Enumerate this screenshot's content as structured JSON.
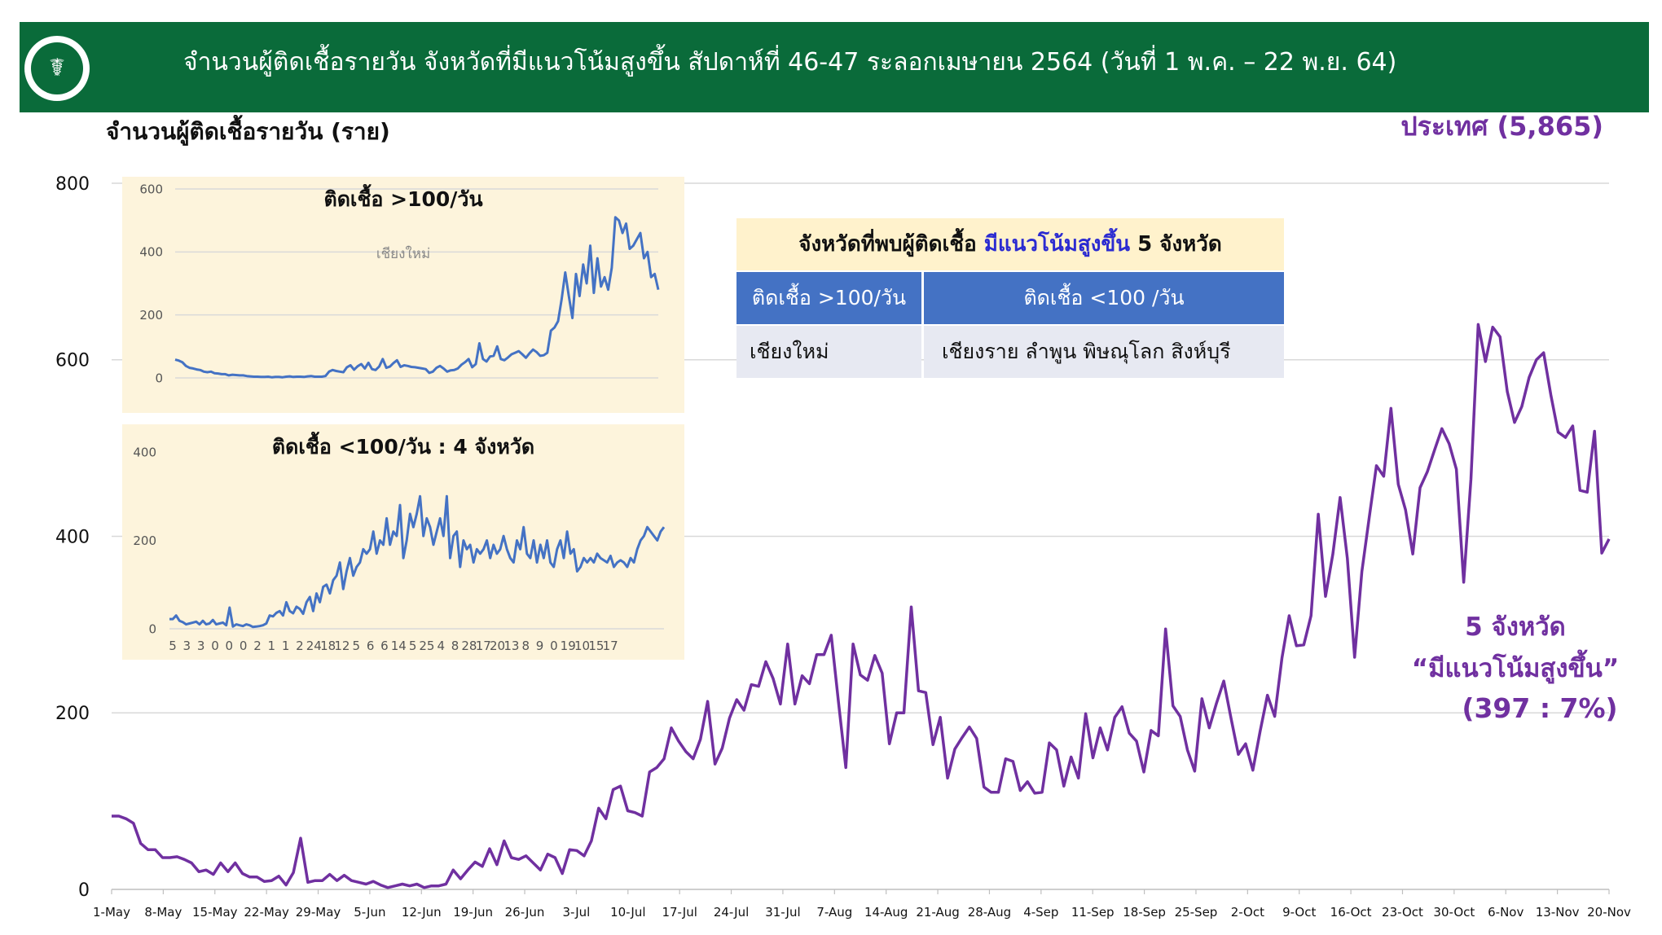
{
  "header": {
    "title": "จำนวนผู้ติดเชื้อรายวัน จังหวัดที่มีแนวโน้มสูงขึ้น สัปดาห์ที่ 46-47 ระลอกเมษายน 2564 (วันที่ 1 พ.ค. – 22 พ.ย. 64)",
    "logo_icon": "ministry-of-public-health-seal-icon"
  },
  "colors": {
    "header_bg": "#0a6b3a",
    "main_line": "#7030a0",
    "inset_line": "#4472c4",
    "inset_bg": "#fdf4dc",
    "table_head": "#4472c4",
    "table_title_bg": "#fff2cc",
    "highlight_text": "#2b2bd1"
  },
  "y_axis_title": "จำนวนผู้ติดเชื้อรายวัน (ราย)",
  "country_total": "ประเทศ (5,865)",
  "callout": {
    "title_prefix": "จังหวัดที่พบผู้ติดเชื้อ",
    "title_highlight": "มีแนวโน้มสูงขึ้น",
    "title_suffix": "5 จังหวัด",
    "col1_header": "ติดเชื้อ >100/วัน",
    "col2_header": "ติดเชื้อ <100 /วัน",
    "col1_value": "เชียงใหม่",
    "col2_value": "เชียงราย ลำพูน พิษณุโลก สิงห์บุรี"
  },
  "annotation": {
    "line1": "5 จังหวัด",
    "line2": "“มีแนวโน้มสูงขึ้น”",
    "line3": "(397 : 7%)"
  },
  "chart_data": [
    {
      "type": "line",
      "title": "",
      "ylabel": "จำนวนผู้ติดเชื้อรายวัน (ราย)",
      "ylim": [
        0,
        800
      ],
      "yticks": [
        0,
        200,
        400,
        600,
        800
      ],
      "grid": true,
      "x_tick_labels": [
        "1-May",
        "8-May",
        "15-May",
        "22-May",
        "29-May",
        "5-Jun",
        "12-Jun",
        "19-Jun",
        "26-Jun",
        "3-Jul",
        "10-Jul",
        "17-Jul",
        "24-Jul",
        "31-Jul",
        "7-Aug",
        "14-Aug",
        "21-Aug",
        "28-Aug",
        "4-Sep",
        "11-Sep",
        "18-Sep",
        "25-Sep",
        "2-Oct",
        "9-Oct",
        "16-Oct",
        "23-Oct",
        "30-Oct",
        "6-Nov",
        "13-Nov",
        "20-Nov"
      ],
      "series": [
        {
          "name": "5 จังหวัด “มีแนวโน้มสูงขึ้น”",
          "color": "#7030a0",
          "values": [
            83,
            83,
            80,
            75,
            52,
            45,
            45,
            36,
            36,
            37,
            34,
            30,
            20,
            22,
            17,
            30,
            20,
            30,
            18,
            14,
            14,
            9,
            10,
            15,
            5,
            19,
            58,
            8,
            10,
            10,
            17,
            10,
            16,
            10,
            8,
            6,
            9,
            5,
            2,
            4,
            6,
            4,
            6,
            2,
            4,
            4,
            6,
            22,
            12,
            22,
            31,
            26,
            46,
            28,
            55,
            36,
            34,
            38,
            30,
            22,
            40,
            36,
            18,
            45,
            44,
            38,
            55,
            92,
            80,
            113,
            117,
            89,
            87,
            83,
            133,
            138,
            148,
            183,
            168,
            156,
            148,
            170,
            213,
            142,
            160,
            194,
            215,
            203,
            232,
            230,
            258,
            239,
            210,
            278,
            210,
            242,
            233,
            266,
            266,
            288,
            212,
            138,
            278,
            243,
            237,
            265,
            245,
            165,
            200,
            200,
            320,
            225,
            223,
            164,
            195,
            126,
            159,
            172,
            184,
            171,
            116,
            110,
            110,
            148,
            145,
            112,
            122,
            109,
            110,
            166,
            158,
            117,
            150,
            126,
            199,
            149,
            183,
            158,
            195,
            207,
            177,
            168,
            133,
            180,
            174,
            295,
            208,
            196,
            158,
            134,
            216,
            183,
            211,
            236,
            194,
            153,
            165,
            135,
            179,
            220,
            196,
            262,
            310,
            276,
            277,
            310,
            425,
            332,
            380,
            444,
            375,
            263,
            360,
            421,
            480,
            468,
            545,
            459,
            430,
            380,
            455,
            473,
            498,
            522,
            505,
            476,
            348,
            465,
            640,
            598,
            637,
            626,
            564,
            529,
            547,
            580,
            600,
            608,
            560,
            518,
            512,
            525,
            452,
            450,
            519,
            381,
            397
          ]
        }
      ]
    },
    {
      "type": "line",
      "title": "ติดเชื้อ >100/วัน",
      "annotation": "เชียงใหม่",
      "ylim": [
        0,
        600
      ],
      "yticks": [
        0,
        200,
        400,
        600
      ],
      "grid": true,
      "series": [
        {
          "name": "เชียงใหม่",
          "color": "#4472c4",
          "values": [
            58,
            55,
            50,
            38,
            32,
            30,
            27,
            25,
            20,
            18,
            20,
            15,
            14,
            12,
            12,
            8,
            10,
            9,
            8,
            8,
            6,
            5,
            4,
            4,
            3,
            3,
            4,
            2,
            3,
            3,
            2,
            4,
            5,
            3,
            4,
            4,
            3,
            5,
            6,
            4,
            4,
            4,
            6,
            20,
            25,
            22,
            20,
            18,
            34,
            40,
            26,
            37,
            44,
            30,
            48,
            28,
            25,
            36,
            60,
            32,
            36,
            47,
            56,
            35,
            40,
            38,
            35,
            34,
            32,
            30,
            28,
            16,
            20,
            32,
            38,
            30,
            20,
            24,
            25,
            30,
            42,
            50,
            60,
            34,
            44,
            110,
            60,
            52,
            68,
            70,
            100,
            60,
            56,
            65,
            75,
            80,
            85,
            75,
            64,
            78,
            90,
            82,
            70,
            72,
            80,
            150,
            160,
            180,
            250,
            335,
            260,
            190,
            330,
            260,
            360,
            300,
            420,
            270,
            380,
            290,
            320,
            280,
            350,
            510,
            500,
            460,
            490,
            410,
            420,
            440,
            460,
            380,
            400,
            320,
            330,
            280
          ]
        }
      ]
    },
    {
      "type": "line",
      "title": "ติดเชื้อ <100/วัน : 4 จังหวัด",
      "ylim": [
        0,
        400
      ],
      "yticks": [
        0,
        200,
        400
      ],
      "grid": false,
      "x_tick_labels": [
        "5",
        "3",
        "3",
        "0",
        "0",
        "0",
        "2",
        "1",
        "1",
        "2",
        "24",
        "18",
        "12",
        "5",
        "6",
        "6",
        "14",
        "5",
        "25",
        "4",
        "8",
        "28",
        "17",
        "20",
        "13",
        "8",
        "9",
        "0",
        "19",
        "10",
        "15",
        "17"
      ],
      "series": [
        {
          "name": "4 จังหวัด",
          "color": "#4472c4",
          "values": [
            22,
            22,
            30,
            18,
            15,
            10,
            12,
            14,
            16,
            10,
            18,
            10,
            12,
            20,
            10,
            12,
            14,
            8,
            48,
            5,
            10,
            8,
            6,
            10,
            8,
            4,
            5,
            6,
            8,
            12,
            30,
            28,
            36,
            40,
            30,
            60,
            40,
            35,
            50,
            45,
            34,
            60,
            72,
            40,
            80,
            60,
            95,
            100,
            80,
            110,
            120,
            150,
            90,
            130,
            160,
            120,
            140,
            150,
            180,
            170,
            180,
            220,
            170,
            200,
            190,
            250,
            190,
            220,
            210,
            280,
            160,
            200,
            260,
            230,
            260,
            300,
            210,
            250,
            230,
            190,
            220,
            250,
            210,
            300,
            160,
            210,
            220,
            140,
            200,
            180,
            190,
            150,
            180,
            170,
            180,
            200,
            160,
            190,
            170,
            180,
            210,
            180,
            160,
            150,
            200,
            180,
            230,
            170,
            160,
            200,
            150,
            190,
            160,
            200,
            150,
            140,
            180,
            200,
            160,
            220,
            170,
            180,
            130,
            140,
            160,
            150,
            160,
            150,
            170,
            160,
            155,
            150,
            165,
            140,
            150,
            155,
            150,
            140,
            160,
            150,
            180,
            200,
            210,
            230,
            220,
            210,
            200,
            220,
            230
          ]
        }
      ]
    }
  ]
}
